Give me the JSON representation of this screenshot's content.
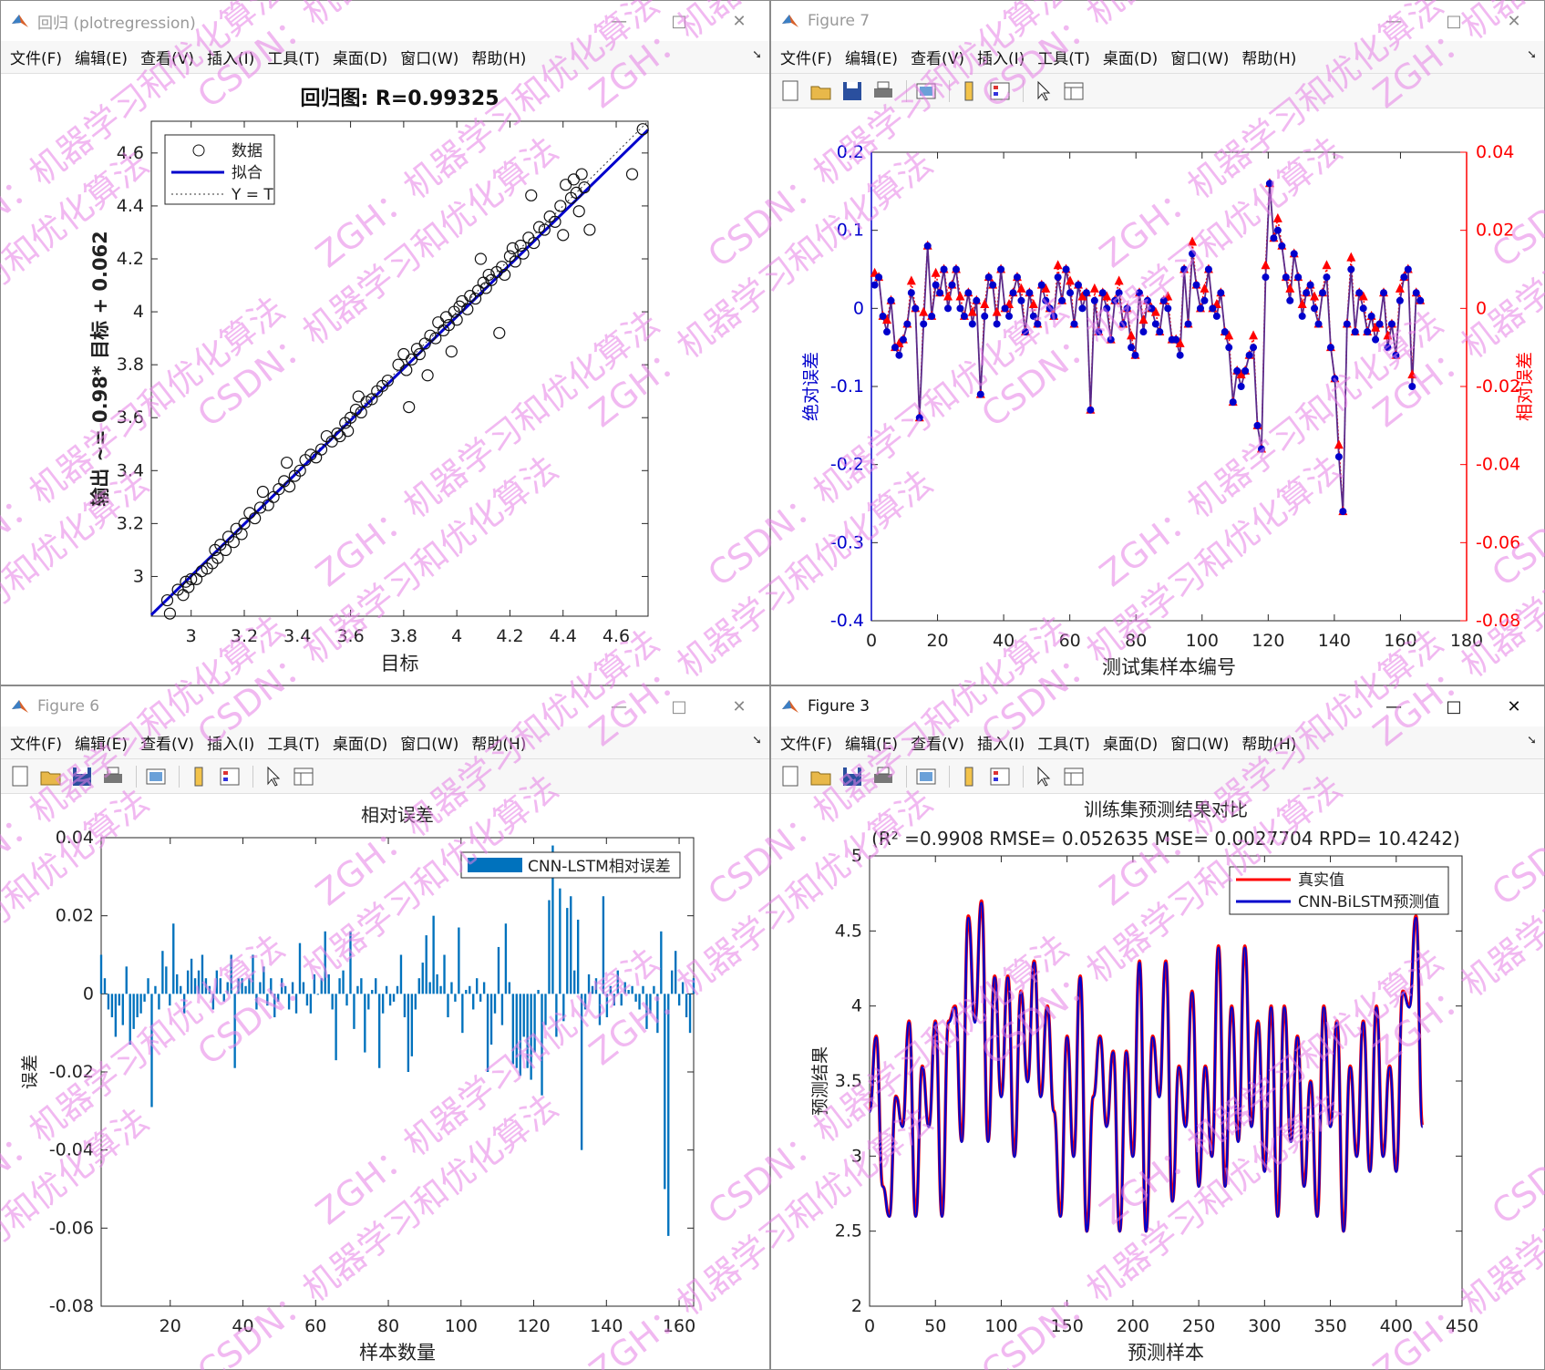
{
  "menus": [
    "文件(F)",
    "编辑(E)",
    "查看(V)",
    "插入(I)",
    "工具(T)",
    "桌面(D)",
    "窗口(W)",
    "帮助(H)"
  ],
  "windows": {
    "w1": {
      "title": "回归 (plotregression)"
    },
    "w2": {
      "title": "Figure 7"
    },
    "w3": {
      "title": "Figure 6"
    },
    "w4": {
      "title": "Figure 3"
    }
  },
  "colors": {
    "blue": "#0000cc",
    "red": "#ff0000",
    "bar": "#0072bd",
    "watermark": "#e680e6"
  },
  "watermark_texts": [
    "ZGH：机器学习和优化算法",
    "CSDN：机器学习和优化算法"
  ],
  "chart_data": [
    {
      "type": "scatter",
      "title": "回归图: R=0.99325",
      "xlabel": "目标",
      "ylabel": "输出 ~= 0.98* 目标 + 0.062",
      "xlim": [
        2.85,
        4.72
      ],
      "ylim": [
        2.85,
        4.72
      ],
      "xticks": [
        3,
        3.2,
        3.4,
        3.6,
        3.8,
        4,
        4.2,
        4.4,
        4.6
      ],
      "yticks": [
        3,
        3.2,
        3.4,
        3.6,
        3.8,
        4,
        4.2,
        4.4,
        4.6
      ],
      "legend": [
        "数据",
        "拟合",
        "Y = T"
      ],
      "legend_position": "top-left",
      "fit": {
        "slope": 0.98,
        "intercept": 0.062
      },
      "points": [
        [
          2.91,
          2.91
        ],
        [
          2.92,
          2.86
        ],
        [
          2.95,
          2.95
        ],
        [
          2.97,
          2.93
        ],
        [
          2.98,
          2.98
        ],
        [
          2.99,
          2.96
        ],
        [
          3.0,
          2.99
        ],
        [
          3.02,
          2.99
        ],
        [
          3.04,
          3.02
        ],
        [
          3.06,
          3.03
        ],
        [
          3.08,
          3.05
        ],
        [
          3.09,
          3.1
        ],
        [
          3.1,
          3.07
        ],
        [
          3.11,
          3.12
        ],
        [
          3.13,
          3.1
        ],
        [
          3.14,
          3.15
        ],
        [
          3.16,
          3.13
        ],
        [
          3.17,
          3.18
        ],
        [
          3.19,
          3.16
        ],
        [
          3.2,
          3.2
        ],
        [
          3.22,
          3.24
        ],
        [
          3.24,
          3.22
        ],
        [
          3.26,
          3.26
        ],
        [
          3.27,
          3.32
        ],
        [
          3.29,
          3.27
        ],
        [
          3.31,
          3.3
        ],
        [
          3.33,
          3.33
        ],
        [
          3.35,
          3.36
        ],
        [
          3.36,
          3.43
        ],
        [
          3.37,
          3.34
        ],
        [
          3.39,
          3.38
        ],
        [
          3.41,
          3.4
        ],
        [
          3.43,
          3.44
        ],
        [
          3.45,
          3.46
        ],
        [
          3.47,
          3.45
        ],
        [
          3.49,
          3.48
        ],
        [
          3.51,
          3.53
        ],
        [
          3.53,
          3.51
        ],
        [
          3.55,
          3.54
        ],
        [
          3.56,
          3.53
        ],
        [
          3.58,
          3.58
        ],
        [
          3.59,
          3.55
        ],
        [
          3.6,
          3.6
        ],
        [
          3.62,
          3.63
        ],
        [
          3.63,
          3.68
        ],
        [
          3.64,
          3.62
        ],
        [
          3.66,
          3.66
        ],
        [
          3.68,
          3.67
        ],
        [
          3.7,
          3.7
        ],
        [
          3.72,
          3.72
        ],
        [
          3.74,
          3.74
        ],
        [
          3.78,
          3.8
        ],
        [
          3.8,
          3.84
        ],
        [
          3.81,
          3.78
        ],
        [
          3.82,
          3.64
        ],
        [
          3.83,
          3.82
        ],
        [
          3.85,
          3.86
        ],
        [
          3.86,
          3.84
        ],
        [
          3.88,
          3.88
        ],
        [
          3.89,
          3.76
        ],
        [
          3.9,
          3.91
        ],
        [
          3.92,
          3.9
        ],
        [
          3.93,
          3.96
        ],
        [
          3.95,
          3.93
        ],
        [
          3.96,
          3.98
        ],
        [
          3.97,
          3.95
        ],
        [
          3.98,
          3.85
        ],
        [
          3.99,
          4.0
        ],
        [
          4.0,
          3.97
        ],
        [
          4.01,
          4.02
        ],
        [
          4.02,
          4.04
        ],
        [
          4.04,
          4.01
        ],
        [
          4.05,
          4.06
        ],
        [
          4.07,
          4.05
        ],
        [
          4.08,
          4.08
        ],
        [
          4.09,
          4.2
        ],
        [
          4.1,
          4.11
        ],
        [
          4.11,
          4.09
        ],
        [
          4.12,
          4.14
        ],
        [
          4.13,
          4.12
        ],
        [
          4.15,
          4.15
        ],
        [
          4.16,
          3.92
        ],
        [
          4.17,
          4.17
        ],
        [
          4.18,
          4.14
        ],
        [
          4.2,
          4.21
        ],
        [
          4.21,
          4.24
        ],
        [
          4.22,
          4.19
        ],
        [
          4.24,
          4.25
        ],
        [
          4.25,
          4.22
        ],
        [
          4.27,
          4.28
        ],
        [
          4.28,
          4.44
        ],
        [
          4.29,
          4.26
        ],
        [
          4.31,
          4.32
        ],
        [
          4.33,
          4.31
        ],
        [
          4.35,
          4.36
        ],
        [
          4.37,
          4.34
        ],
        [
          4.39,
          4.4
        ],
        [
          4.4,
          4.29
        ],
        [
          4.41,
          4.48
        ],
        [
          4.43,
          4.43
        ],
        [
          4.44,
          4.5
        ],
        [
          4.45,
          4.45
        ],
        [
          4.46,
          4.38
        ],
        [
          4.47,
          4.52
        ],
        [
          4.48,
          4.47
        ],
        [
          4.5,
          4.31
        ],
        [
          4.7,
          4.69
        ],
        [
          4.66,
          4.52
        ]
      ]
    },
    {
      "type": "line",
      "title": "",
      "xlabel": "测试集样本编号",
      "ylabel_left": "绝对误差",
      "ylabel_right": "相对误差",
      "xlim": [
        0,
        180
      ],
      "ylim_left": [
        -0.4,
        0.2
      ],
      "ylim_right": [
        -0.08,
        0.04
      ],
      "xticks": [
        0,
        20,
        40,
        60,
        80,
        100,
        120,
        140,
        160,
        180
      ],
      "yticks_left": [
        -0.4,
        -0.3,
        -0.2,
        -0.1,
        0,
        0.1,
        0.2
      ],
      "yticks_right": [
        -0.08,
        -0.06,
        -0.04,
        -0.02,
        0,
        0.02,
        0.04
      ],
      "series": [
        {
          "values": [
            0.03,
            0.04,
            -0.01,
            -0.03,
            0.01,
            -0.05,
            -0.06,
            -0.04,
            -0.02,
            0.02,
            0.0,
            -0.14,
            -0.02,
            0.08,
            -0.01,
            0.03,
            0.02,
            0.05,
            0.0,
            0.03,
            0.05,
            0.0,
            -0.01,
            0.02,
            -0.02,
            0.01,
            -0.11,
            -0.01,
            0.04,
            0.03,
            -0.02,
            0.05,
            0.0,
            -0.01,
            0.02,
            0.04,
            0.01,
            -0.03,
            0.02,
            -0.01,
            -0.02,
            0.03,
            0.01,
            0.0,
            -0.01,
            0.04,
            0.01,
            0.05,
            0.02,
            -0.02,
            0.03,
            0.0,
            0.02,
            -0.13,
            0.01,
            -0.03,
            0.02,
            0.0,
            -0.04,
            0.01,
            0.02,
            -0.02,
            0.0,
            -0.05,
            -0.06,
            0.02,
            -0.03,
            0.01,
            0.0,
            -0.02,
            -0.03,
            0.01,
            0.0,
            -0.04,
            -0.04,
            -0.06,
            0.05,
            -0.02,
            0.07,
            0.03,
            0.0,
            0.01,
            0.05,
            0.0,
            -0.01,
            0.02,
            -0.03,
            -0.05,
            -0.12,
            -0.08,
            -0.1,
            -0.08,
            -0.06,
            -0.05,
            -0.15,
            -0.18,
            0.04,
            0.16,
            0.09,
            0.1,
            0.08,
            0.04,
            0.01,
            0.07,
            0.04,
            -0.01,
            0.02,
            0.03,
            0.0,
            -0.02,
            0.02,
            0.04,
            -0.05,
            -0.09,
            -0.19,
            -0.26,
            -0.02,
            0.05,
            -0.03,
            0.02,
            0.0,
            -0.03,
            -0.01,
            -0.04,
            -0.02,
            0.02,
            -0.05,
            -0.02,
            -0.06,
            0.01,
            0.04,
            0.05,
            -0.1,
            0.02,
            0.01
          ]
        }
      ]
    },
    {
      "type": "bar",
      "title": "相对误差",
      "xlabel": "样本数量",
      "ylabel": "误差",
      "xlim": [
        1,
        164
      ],
      "ylim": [
        -0.08,
        0.04
      ],
      "xticks": [
        20,
        40,
        60,
        80,
        100,
        120,
        140,
        160
      ],
      "yticks": [
        -0.08,
        -0.06,
        -0.04,
        -0.02,
        0,
        0.02,
        0.04
      ],
      "legend": [
        "CNN-LSTM相对误差"
      ],
      "legend_position": "top-right",
      "values": [
        0.01,
        0.004,
        -0.004,
        -0.006,
        -0.011,
        -0.003,
        -0.008,
        0.007,
        -0.013,
        -0.009,
        -0.006,
        -0.005,
        -0.002,
        0.004,
        -0.029,
        0.002,
        -0.004,
        0.011,
        0.007,
        -0.003,
        0.018,
        0.005,
        0.002,
        -0.005,
        0.006,
        0.009,
        0.004,
        0.006,
        0.01,
        0.004,
        0.002,
        -0.004,
        0.006,
        0.004,
        -0.002,
        0.003,
        0.01,
        -0.019,
        0.004,
        0.004,
        0.002,
        0.004,
        0.01,
        -0.004,
        0.003,
        0.007,
        -0.003,
        0.004,
        -0.006,
        -0.002,
        0.004,
        0.002,
        -0.004,
        0.003,
        -0.005,
        0.013,
        0.003,
        -0.003,
        -0.005,
        0.005,
        0.0,
        0.004,
        0.016,
        0.005,
        -0.004,
        -0.017,
        0.004,
        0.006,
        -0.003,
        0.016,
        -0.009,
        0.002,
        0.004,
        -0.015,
        -0.004,
        0.001,
        0.004,
        -0.019,
        -0.005,
        0.002,
        -0.003,
        -0.002,
        0.002,
        0.01,
        -0.006,
        -0.02,
        -0.016,
        -0.004,
        0.004,
        0.008,
        0.015,
        0.003,
        0.02,
        0.005,
        0.002,
        0.01,
        -0.006,
        0.003,
        -0.002,
        0.017,
        -0.01,
        0.001,
        0.002,
        -0.004,
        0.004,
        -0.002,
        0.003,
        -0.02,
        -0.013,
        -0.005,
        0.012,
        -0.008,
        0.018,
        0.003,
        -0.018,
        -0.019,
        -0.021,
        -0.011,
        -0.019,
        -0.022,
        -0.015,
        0.001,
        -0.026,
        -0.008,
        0.024,
        0.038,
        -0.011,
        0.027,
        -0.007,
        0.022,
        0.025,
        0.006,
        0.019,
        -0.04,
        -0.004,
        0.005,
        0.002,
        0.004,
        -0.008,
        0.025,
        -0.006,
        0.002,
        -0.003,
        0.006,
        -0.003,
        0.003,
        0.001,
        0.002,
        -0.002,
        -0.004,
        0.002,
        -0.009,
        -0.005,
        0.002,
        -0.01,
        0.016,
        -0.05,
        -0.062,
        0.006,
        0.011,
        -0.003,
        0.003,
        -0.006,
        -0.01,
        0.004
      ]
    },
    {
      "type": "line",
      "title": "训练集预测结果对比",
      "subtitle": "(R² =0.9908 RMSE= 0.052635 MSE= 0.0027704 RPD= 10.4242)",
      "xlabel": "预测样本",
      "ylabel": "预测结果",
      "xlim": [
        0,
        450
      ],
      "ylim": [
        2,
        5
      ],
      "xticks": [
        0,
        50,
        100,
        150,
        200,
        250,
        300,
        350,
        400,
        450
      ],
      "yticks": [
        2,
        2.5,
        3,
        3.5,
        4,
        4.5,
        5
      ],
      "legend": [
        "真实值",
        "CNN-BiLSTM预测值"
      ],
      "legend_position": "top-right",
      "series": [
        {
          "name": "真实值",
          "x": [
            0,
            5,
            10,
            15,
            20,
            25,
            30,
            35,
            40,
            45,
            50,
            55,
            60,
            65,
            70,
            75,
            80,
            85,
            90,
            95,
            100,
            105,
            110,
            115,
            120,
            125,
            130,
            135,
            140,
            145,
            150,
            155,
            160,
            165,
            170,
            175,
            180,
            185,
            190,
            195,
            200,
            205,
            210,
            215,
            220,
            225,
            230,
            235,
            240,
            245,
            250,
            255,
            260,
            265,
            270,
            275,
            280,
            285,
            290,
            295,
            300,
            305,
            310,
            315,
            320,
            325,
            330,
            335,
            340,
            345,
            350,
            355,
            360,
            365,
            370,
            375,
            380,
            385,
            390,
            395,
            400,
            405,
            410,
            415,
            420
          ],
          "y": [
            3.3,
            3.8,
            2.8,
            2.6,
            3.4,
            3.2,
            3.9,
            2.6,
            3.6,
            3.2,
            3.9,
            2.6,
            3.9,
            4.0,
            3.1,
            4.6,
            3.9,
            4.7,
            3.1,
            4.2,
            3.4,
            4.2,
            3.0,
            4.1,
            3.5,
            4.3,
            3.4,
            4.0,
            3.3,
            2.6,
            3.8,
            3.0,
            4.2,
            2.5,
            3.4,
            3.8,
            3.2,
            3.7,
            2.5,
            3.7,
            3.0,
            4.3,
            2.5,
            3.8,
            3.4,
            4.3,
            2.7,
            3.6,
            3.2,
            4.1,
            2.8,
            3.6,
            3.0,
            4.4,
            2.8,
            4.0,
            3.1,
            4.4,
            3.2,
            3.9,
            2.9,
            4.0,
            2.6,
            4.0,
            3.1,
            3.8,
            2.8,
            3.5,
            2.6,
            4.0,
            3.2,
            3.9,
            2.5,
            3.6,
            3.0,
            3.9,
            2.9,
            4.0,
            3.0,
            3.6,
            2.9,
            4.1,
            4.0,
            4.6,
            3.2
          ]
        },
        {
          "name": "CNN-BiLSTM预测值",
          "x": [
            0,
            5,
            10,
            15,
            20,
            25,
            30,
            35,
            40,
            45,
            50,
            55,
            60,
            65,
            70,
            75,
            80,
            85,
            90,
            95,
            100,
            105,
            110,
            115,
            120,
            125,
            130,
            135,
            140,
            145,
            150,
            155,
            160,
            165,
            170,
            175,
            180,
            185,
            190,
            195,
            200,
            205,
            210,
            215,
            220,
            225,
            230,
            235,
            240,
            245,
            250,
            255,
            260,
            265,
            270,
            275,
            280,
            285,
            290,
            295,
            300,
            305,
            310,
            315,
            320,
            325,
            330,
            335,
            340,
            345,
            350,
            355,
            360,
            365,
            370,
            375,
            380,
            385,
            390,
            395,
            400,
            405,
            410,
            415,
            420
          ],
          "y": [
            3.3,
            3.8,
            2.8,
            2.6,
            3.4,
            3.2,
            3.9,
            2.6,
            3.6,
            3.2,
            3.9,
            2.6,
            3.9,
            4.0,
            3.1,
            4.6,
            3.9,
            4.7,
            3.1,
            4.2,
            3.4,
            4.2,
            3.0,
            4.1,
            3.5,
            4.3,
            3.4,
            4.0,
            3.3,
            2.6,
            3.8,
            3.0,
            4.2,
            2.5,
            3.4,
            3.8,
            3.2,
            3.7,
            2.5,
            3.7,
            3.0,
            4.3,
            2.5,
            3.8,
            3.4,
            4.3,
            2.7,
            3.6,
            3.2,
            4.1,
            2.8,
            3.6,
            3.0,
            4.4,
            2.8,
            4.0,
            3.1,
            4.4,
            3.2,
            3.9,
            2.9,
            4.0,
            2.6,
            4.0,
            3.1,
            3.8,
            2.8,
            3.5,
            2.6,
            4.0,
            3.2,
            3.9,
            2.5,
            3.6,
            3.0,
            3.9,
            2.9,
            4.0,
            3.0,
            3.6,
            2.9,
            4.1,
            4.0,
            4.6,
            3.2
          ]
        }
      ]
    }
  ]
}
